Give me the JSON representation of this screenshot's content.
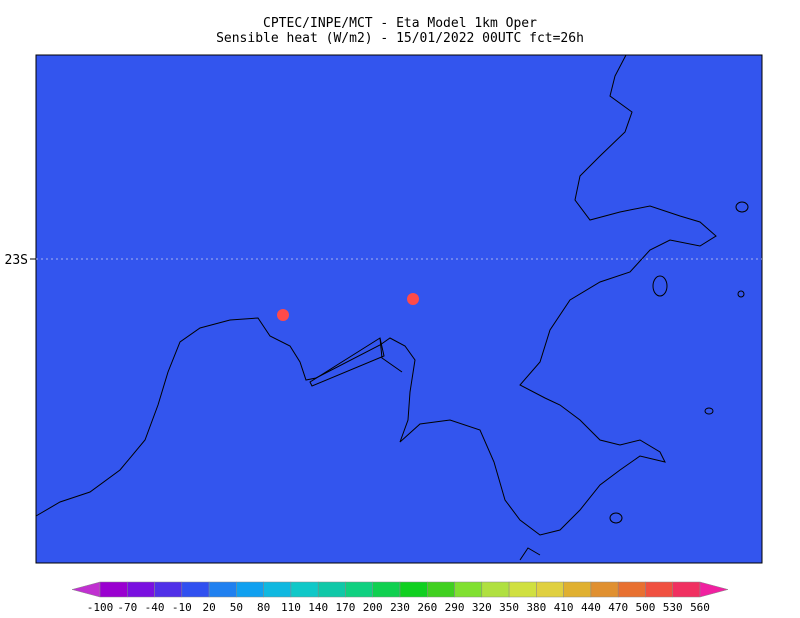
{
  "title": [
    "CPTEC/INPE/MCT -  Eta Model 1km Oper",
    "Sensible heat (W/m2) - 15/01/2022 00UTC fct=26h"
  ],
  "map": {
    "lat_label": "23S"
  },
  "colorbar": {
    "labels": [
      -100,
      -70,
      -40,
      -10,
      20,
      50,
      80,
      110,
      140,
      170,
      200,
      230,
      260,
      290,
      320,
      350,
      380,
      410,
      440,
      470,
      500,
      530,
      560
    ],
    "colors": [
      "#c030d0",
      "#9a00d0",
      "#7a10e0",
      "#5030e8",
      "#3050f0",
      "#2080f0",
      "#10a0f0",
      "#10b8e0",
      "#10c8c8",
      "#10c8a8",
      "#10d080",
      "#10d050",
      "#10d020",
      "#40d020",
      "#80e030",
      "#b0e040",
      "#d0e040",
      "#e0d040",
      "#e0b030",
      "#e09030",
      "#e87030",
      "#f05040",
      "#f03060",
      "#f020a0"
    ]
  }
}
